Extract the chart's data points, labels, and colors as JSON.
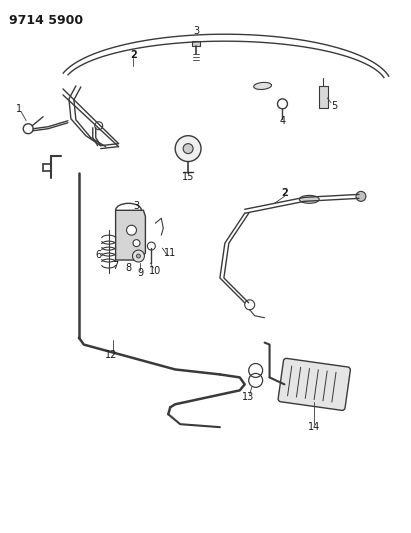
{
  "title": "9714 5900",
  "bg_color": "#ffffff",
  "line_color": "#3a3a3a",
  "label_color": "#1a1a1a",
  "title_fontsize": 9,
  "label_fontsize": 7
}
